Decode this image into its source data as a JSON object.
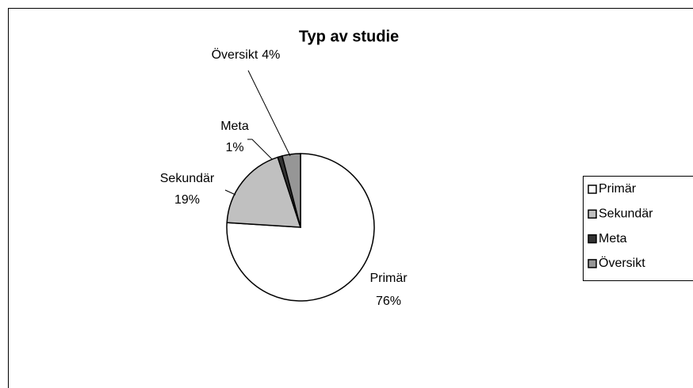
{
  "chart_data": {
    "type": "pie",
    "title": "Typ av studie",
    "categories": [
      "Primär",
      "Sekundär",
      "Meta",
      "Översikt"
    ],
    "values": [
      76,
      19,
      1,
      4
    ],
    "value_labels": [
      "76%",
      "19%",
      "1%",
      "4%"
    ],
    "colors": [
      "#ffffff",
      "#c0c0c0",
      "#333333",
      "#969696"
    ],
    "legend": "right"
  }
}
